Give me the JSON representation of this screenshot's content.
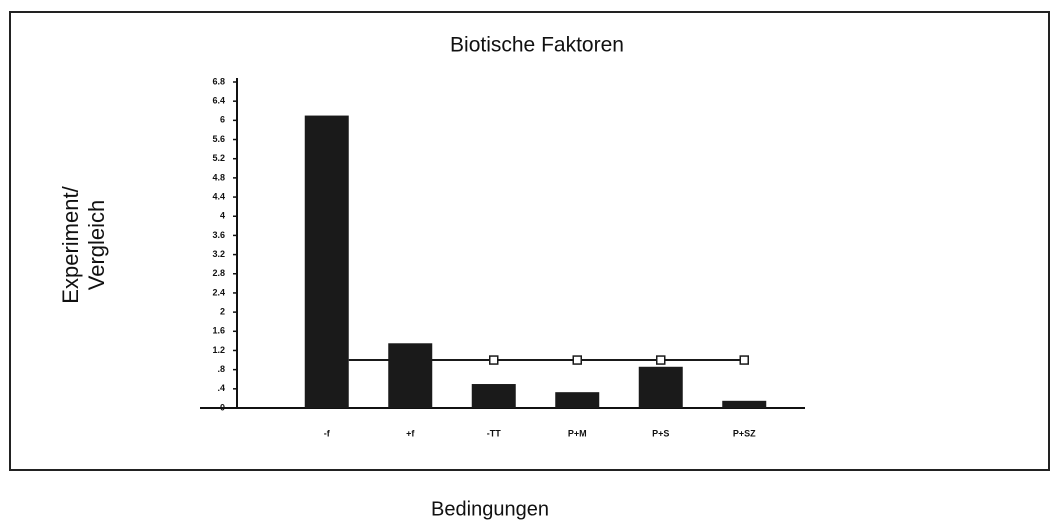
{
  "chart_data": {
    "type": "bar",
    "title": "Biotische Faktoren",
    "ylabel": [
      "Experiment/",
      "Vergleich"
    ],
    "xlabel": "Bedingungen",
    "categories": [
      "-f",
      "+f",
      "-TT",
      "P+M",
      "P+S",
      "P+SZ"
    ],
    "series": [
      {
        "type": "bar",
        "color": "#1a1a1a",
        "values": [
          6.1,
          1.35,
          0.5,
          0.33,
          0.86,
          0.15
        ]
      },
      {
        "type": "line",
        "color": "#1a1a1a",
        "values": [
          null,
          1.0,
          1.0,
          1.0,
          1.0,
          1.0
        ]
      }
    ],
    "ylim": [
      0,
      6.8
    ],
    "yticks": [
      0,
      {
        "value": 0.4,
        "label": ".4"
      },
      {
        "value": 0.8,
        "label": ".8"
      },
      1.2,
      1.6,
      2,
      2.4,
      2.8,
      3.2,
      3.6,
      4,
      4.4,
      4.8,
      5.2,
      5.6,
      6,
      6.4,
      6.8
    ]
  }
}
